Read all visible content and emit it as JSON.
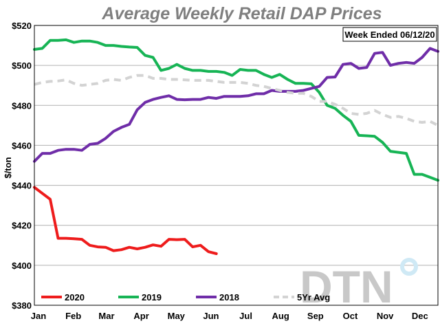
{
  "chart_data": {
    "type": "line",
    "title": "Average Weekly Retail DAP Prices",
    "ylabel": "$/ton",
    "ylim": [
      380,
      520
    ],
    "yticks": [
      380,
      400,
      420,
      440,
      460,
      480,
      500,
      520
    ],
    "ytick_labels": [
      "$380",
      "$400",
      "$420",
      "$440",
      "$460",
      "$480",
      "$500",
      "$520"
    ],
    "x_range_weeks": [
      1,
      52
    ],
    "months": [
      {
        "label": "Jan",
        "week": 1
      },
      {
        "label": "Feb",
        "week": 5.4
      },
      {
        "label": "Mar",
        "week": 9.6
      },
      {
        "label": "Apr",
        "week": 14
      },
      {
        "label": "May",
        "week": 18.4
      },
      {
        "label": "Jun",
        "week": 22.8
      },
      {
        "label": "Jul",
        "week": 27.2
      },
      {
        "label": "Aug",
        "week": 31.6
      },
      {
        "label": "Sep",
        "week": 36
      },
      {
        "label": "Oct",
        "week": 40.4
      },
      {
        "label": "Nov",
        "week": 44.8
      },
      {
        "label": "Dec",
        "week": 49.2
      }
    ],
    "annotation": "Week Ended 06/12/20",
    "grid": "horizontal",
    "legend_position": "bottom-left",
    "series": [
      {
        "name": "2020",
        "color": "#ee1c1c",
        "dashed": false,
        "x": [
          1,
          2,
          3,
          4,
          5,
          6,
          7,
          8,
          9,
          10,
          11,
          12,
          13,
          14,
          15,
          16,
          17,
          18,
          19,
          20,
          21,
          22,
          23,
          24
        ],
        "y": [
          439,
          436,
          433,
          413.5,
          413.5,
          413.3,
          413,
          410,
          409.2,
          409,
          407.3,
          407.8,
          409,
          408.2,
          409,
          410.2,
          409.5,
          413,
          412.8,
          413,
          409.2,
          410,
          406.8,
          405.8
        ]
      },
      {
        "name": "2019",
        "color": "#17b455",
        "dashed": false,
        "x": [
          1,
          2,
          3,
          4,
          5,
          6,
          7,
          8,
          9,
          10,
          11,
          12,
          13,
          14,
          15,
          16,
          17,
          18,
          19,
          20,
          21,
          22,
          23,
          24,
          25,
          26,
          27,
          28,
          29,
          30,
          31,
          32,
          33,
          34,
          35,
          36,
          37,
          38,
          39,
          40,
          41,
          42,
          43,
          44,
          45,
          46,
          47,
          48,
          49,
          50,
          51,
          52
        ],
        "y": [
          508,
          508.5,
          512.5,
          512.5,
          512.8,
          511.5,
          512.2,
          512.2,
          511.5,
          510,
          510,
          509.5,
          509.2,
          509,
          505,
          504,
          497.5,
          498.5,
          500.5,
          498.5,
          497.5,
          497.5,
          497,
          497,
          496.5,
          495,
          498,
          497.5,
          497.5,
          495.5,
          494,
          495.5,
          493,
          491,
          491,
          490.8,
          486.5,
          480,
          478.5,
          475,
          472,
          465,
          464.8,
          464.5,
          461.5,
          457,
          456.5,
          456,
          445.5,
          445.5,
          444,
          442.5
        ]
      },
      {
        "name": "2018",
        "color": "#6f2da8",
        "dashed": false,
        "x": [
          1,
          2,
          3,
          4,
          5,
          6,
          7,
          8,
          9,
          10,
          11,
          12,
          13,
          14,
          15,
          16,
          17,
          18,
          19,
          20,
          21,
          22,
          23,
          24,
          25,
          26,
          27,
          28,
          29,
          30,
          31,
          32,
          33,
          34,
          35,
          36,
          37,
          38,
          39,
          40,
          41,
          42,
          43,
          44,
          45,
          46,
          47,
          48,
          49,
          50,
          51,
          52
        ],
        "y": [
          452,
          456,
          456,
          457.5,
          458,
          458,
          457.5,
          460.5,
          461,
          463.5,
          467,
          469,
          470.5,
          477.8,
          481.5,
          483,
          484,
          484.8,
          483,
          482.8,
          483,
          483,
          484,
          483.5,
          484.5,
          484.5,
          484.5,
          484.8,
          485.8,
          485.8,
          487.5,
          487,
          487,
          487,
          487.5,
          488.5,
          489.5,
          494,
          494.2,
          500.5,
          501,
          498.5,
          499,
          506,
          506.5,
          500,
          501,
          501.5,
          501,
          504,
          508.5,
          507
        ]
      },
      {
        "name": "5Yr Avg",
        "color": "#d3d3d3",
        "dashed": true,
        "x": [
          1,
          2,
          3,
          4,
          5,
          6,
          7,
          8,
          9,
          10,
          11,
          12,
          13,
          14,
          15,
          16,
          17,
          18,
          19,
          20,
          21,
          22,
          23,
          24,
          25,
          26,
          27,
          28,
          29,
          30,
          31,
          32,
          33,
          34,
          35,
          36,
          37,
          38,
          39,
          40,
          41,
          42,
          43,
          44,
          45,
          46,
          47,
          48,
          49,
          50,
          51,
          52
        ],
        "y": [
          490.5,
          491.5,
          492,
          492.2,
          492.8,
          491,
          490,
          490.5,
          491,
          492.5,
          493,
          492.5,
          494,
          495,
          495,
          493.5,
          493.5,
          493,
          493,
          492.8,
          492.5,
          492.5,
          492.5,
          492,
          491.5,
          491.5,
          491.5,
          491,
          490,
          489.5,
          488.5,
          487.5,
          486.5,
          486,
          486,
          484.5,
          482,
          482,
          480.5,
          478.5,
          476,
          475.5,
          476,
          477.5,
          475.5,
          474,
          474.5,
          473.5,
          472,
          471.5,
          472,
          470
        ]
      }
    ]
  },
  "watermark": {
    "text": "DTN"
  }
}
